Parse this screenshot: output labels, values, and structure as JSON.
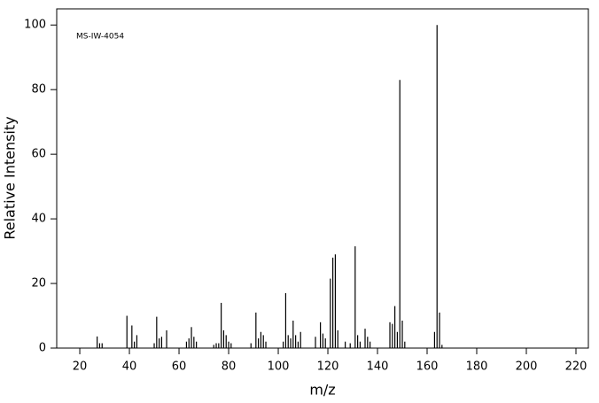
{
  "chart_data": {
    "type": "stem",
    "annotation": "MS-IW-4054",
    "x_label": "m/z",
    "y_label": "Relative Intensity",
    "color": "#000000",
    "x": [
      27,
      28,
      29,
      39,
      41,
      42,
      43,
      50,
      51,
      52,
      53,
      55,
      63,
      64,
      65,
      66,
      67,
      74,
      75,
      76,
      77,
      78,
      79,
      80,
      81,
      89,
      91,
      92,
      93,
      94,
      95,
      102,
      103,
      104,
      105,
      106,
      107,
      108,
      109,
      115,
      117,
      118,
      119,
      121,
      122,
      123,
      124,
      127,
      129,
      131,
      132,
      133,
      135,
      136,
      137,
      145,
      146,
      147,
      148,
      149,
      150,
      151,
      163,
      164,
      165,
      166
    ],
    "values": [
      3.6,
      1.5,
      1.5,
      10,
      7,
      2,
      4,
      1.5,
      9.7,
      3,
      3.5,
      5.5,
      2,
      3,
      6.5,
      3.5,
      2,
      1,
      1.5,
      1.5,
      14,
      5.5,
      4,
      2,
      1.5,
      1.5,
      11,
      3,
      5,
      4,
      2,
      2,
      17,
      4,
      3,
      8.5,
      4,
      2,
      5,
      3.5,
      8,
      4.5,
      3,
      21.5,
      28,
      29,
      5.5,
      2,
      1.5,
      31.5,
      4,
      2,
      6,
      3.5,
      2,
      8,
      7.5,
      13,
      5,
      83,
      8.5,
      2,
      5,
      100,
      11,
      1
    ],
    "xlim": [
      10.7,
      225
    ],
    "xticks": [
      20,
      40,
      60,
      80,
      100,
      120,
      140,
      160,
      180,
      200,
      220
    ],
    "ylim": [
      0,
      105
    ],
    "yticks": [
      0,
      20,
      40,
      60,
      80,
      100
    ]
  }
}
